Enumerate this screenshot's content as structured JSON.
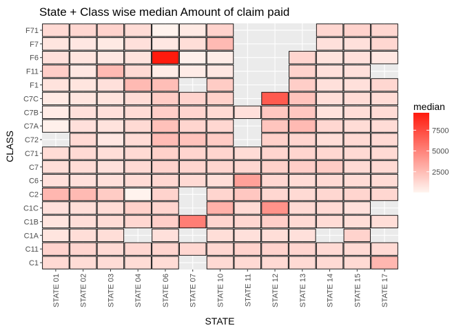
{
  "chart_data": {
    "type": "heatmap",
    "title": "State + Class wise median Amount of claim paid",
    "xlabel": "STATE",
    "ylabel": "CLASS",
    "x_categories": [
      "STATE 01",
      "STATE 02",
      "STATE 03",
      "STATE 04",
      "STATE 06",
      "STATE 07",
      "STATE 10",
      "STATE 11",
      "STATE 12",
      "STATE 13",
      "STATE 14",
      "STATE 15",
      "STATE 17"
    ],
    "y_categories": [
      "C1",
      "C11",
      "C1A",
      "C1B",
      "C1C",
      "C2",
      "C6",
      "C7",
      "C71",
      "C72",
      "C7A",
      "C7B",
      "C7C",
      "F1",
      "F11",
      "F6",
      "F7",
      "F71"
    ],
    "legend": {
      "title": "median",
      "breaks": [
        2500,
        5000,
        7500
      ],
      "break_labels": [
        "2500",
        "5000",
        "7500"
      ],
      "range": [
        0,
        9600
      ],
      "low_color": "#fff5f0",
      "high_color": "#ff1a0d",
      "position": "right"
    },
    "background_color": "#ebebeb",
    "grid": true,
    "values": {
      "F71": [
        1200,
        1300,
        1500,
        1100,
        100,
        500,
        1500,
        null,
        null,
        null,
        1300,
        1500,
        1300
      ],
      "F7": [
        700,
        600,
        500,
        900,
        600,
        1000,
        2600,
        null,
        null,
        null,
        900,
        900,
        1300
      ],
      "F6": [
        900,
        700,
        600,
        800,
        9600,
        200,
        400,
        null,
        null,
        1400,
        800,
        900,
        600
      ],
      "F11": [
        1700,
        600,
        2600,
        1200,
        400,
        400,
        600,
        null,
        null,
        1500,
        900,
        900,
        null
      ],
      "F1": [
        800,
        700,
        900,
        2600,
        2400,
        null,
        1800,
        null,
        null,
        1700,
        900,
        900,
        1300
      ],
      "C7C": [
        500,
        700,
        800,
        1100,
        1800,
        1500,
        1600,
        null,
        6800,
        2200,
        1000,
        1100,
        1100
      ],
      "C7B": [
        400,
        900,
        900,
        1100,
        1700,
        1400,
        1200,
        900,
        2000,
        2000,
        800,
        1000,
        1100
      ],
      "C7A": [
        200,
        900,
        800,
        1200,
        2300,
        1400,
        1300,
        null,
        2100,
        2600,
        1300,
        1100,
        1100
      ],
      "C72": [
        null,
        1200,
        600,
        1100,
        2500,
        2200,
        1800,
        null,
        1600,
        1400,
        1000,
        1200,
        1200
      ],
      "C71": [
        1100,
        1200,
        1000,
        1200,
        1600,
        1400,
        1400,
        1100,
        1400,
        1400,
        1300,
        1200,
        1200
      ],
      "C7": [
        1000,
        1100,
        900,
        1200,
        1500,
        1400,
        1400,
        1300,
        1600,
        1700,
        1800,
        1200,
        1200
      ],
      "C6": [
        900,
        900,
        900,
        1100,
        1300,
        1200,
        1000,
        3700,
        1300,
        1100,
        1200,
        1100,
        1100
      ],
      "C2": [
        2700,
        2600,
        1800,
        100,
        1500,
        null,
        1400,
        2000,
        1300,
        1200,
        1300,
        1400,
        1300
      ],
      "C1C": [
        900,
        1000,
        1100,
        1600,
        1400,
        null,
        3000,
        1200,
        4300,
        1200,
        1200,
        900,
        null
      ],
      "C1B": [
        700,
        1000,
        1100,
        1300,
        1700,
        5200,
        1400,
        1300,
        1700,
        1200,
        1100,
        1000,
        1000
      ],
      "C1A": [
        700,
        1000,
        1000,
        null,
        900,
        null,
        1000,
        900,
        1000,
        900,
        null,
        1500,
        null
      ],
      "C11": [
        1500,
        1400,
        1200,
        1300,
        1400,
        1300,
        1300,
        1500,
        1500,
        1400,
        1200,
        1200,
        1200
      ],
      "C1": [
        1200,
        1100,
        1100,
        1100,
        1100,
        null,
        1200,
        1200,
        1200,
        1200,
        1200,
        1200,
        2700
      ]
    }
  }
}
